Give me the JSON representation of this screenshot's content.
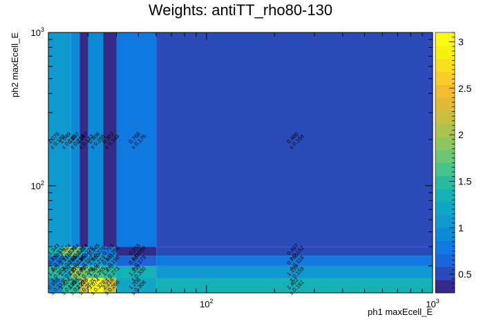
{
  "chart_data": {
    "type": "heatmap",
    "title": "Weights: antiTT_rho80-130",
    "xlabel": "ph1 maxEcell_E",
    "ylabel": "ph2 maxEcell_E",
    "xscale": "log",
    "yscale": "log",
    "xlim": [
      20,
      1000
    ],
    "ylim": [
      20,
      1000
    ],
    "x_ticks": [
      {
        "value": 100,
        "base": "10",
        "exp": "2"
      },
      {
        "value": 1000,
        "base": "10",
        "exp": "3"
      }
    ],
    "y_ticks": [
      {
        "value": 100,
        "base": "10",
        "exp": "2"
      },
      {
        "value": 1000,
        "base": "10",
        "exp": "3"
      }
    ],
    "x_edges": [
      20,
      23.1,
      25.2,
      27.5,
      30,
      35,
      40,
      60,
      1000
    ],
    "y_edges": [
      20,
      25,
      30,
      35,
      40,
      1000
    ],
    "z_min": 0.3,
    "z_max": 3.1,
    "colorbar_ticks": [
      0.5,
      1,
      1.5,
      2,
      2.5,
      3
    ],
    "colorbar_tick_labels": [
      "0.5",
      "1",
      "1.5",
      "2",
      "2.5",
      "3"
    ],
    "cells": [
      {
        "ix": 0,
        "iy": 0,
        "value": 0.958,
        "error": 0.213
      },
      {
        "ix": 1,
        "iy": 0,
        "value": 1.424,
        "error": 0.195
      },
      {
        "ix": 2,
        "iy": 0,
        "value": 1.485,
        "error": 0.199
      },
      {
        "ix": 3,
        "iy": 0,
        "value": 2.228,
        "error": 0.262
      },
      {
        "ix": 4,
        "iy": 0,
        "value": 3.074,
        "error": 0.328
      },
      {
        "ix": 5,
        "iy": 0,
        "value": 2.216,
        "error": 0.266
      },
      {
        "ix": 6,
        "iy": 0,
        "value": 1.208,
        "error": 0.306
      },
      {
        "ix": 7,
        "iy": 0,
        "value": 1.402,
        "error": 0.181
      },
      {
        "ix": 0,
        "iy": 1,
        "value": 1.465,
        "error": 0.283
      },
      {
        "ix": 1,
        "iy": 1,
        "value": 1.152,
        "error": 0.215
      },
      {
        "ix": 2,
        "iy": 1,
        "value": 1.87,
        "error": 0.248
      },
      {
        "ix": 3,
        "iy": 1,
        "value": 1.73,
        "error": 0.246
      },
      {
        "ix": 4,
        "iy": 1,
        "value": 1.566,
        "error": 0.265
      },
      {
        "ix": 5,
        "iy": 1,
        "value": 1.47,
        "error": 0.273
      },
      {
        "ix": 6,
        "iy": 1,
        "value": 1.338,
        "error": 0.33
      },
      {
        "ix": 7,
        "iy": 1,
        "value": 1.139,
        "error": 0.159
      },
      {
        "ix": 0,
        "iy": 2,
        "value": 0.788,
        "error": 0.202
      },
      {
        "ix": 1,
        "iy": 2,
        "value": 1.113,
        "error": 0.203
      },
      {
        "ix": 2,
        "iy": 2,
        "value": 0.969,
        "error": 0.198
      },
      {
        "ix": 3,
        "iy": 2,
        "value": 0.958,
        "error": 0.192
      },
      {
        "ix": 4,
        "iy": 2,
        "value": 1.08,
        "error": 0.213
      },
      {
        "ix": 5,
        "iy": 2,
        "value": 0.861,
        "error": 0.19
      },
      {
        "ix": 6,
        "iy": 2,
        "value": 0.587,
        "error": 0.173
      },
      {
        "ix": 7,
        "iy": 2,
        "value": 0.76,
        "error": 0.118
      },
      {
        "ix": 0,
        "iy": 3,
        "value": 1.343,
        "error": 0.337
      },
      {
        "ix": 1,
        "iy": 3,
        "value": 1.924,
        "error": 0.33
      },
      {
        "ix": 2,
        "iy": 3,
        "value": 1.754,
        "error": 0.326
      },
      {
        "ix": 3,
        "iy": 3,
        "value": 1.114,
        "error": 0.276
      },
      {
        "ix": 4,
        "iy": 3,
        "value": 0.945,
        "error": 0.276
      },
      {
        "ix": 5,
        "iy": 3,
        "value": 0.791,
        "error": 0.256
      },
      {
        "ix": 6,
        "iy": 3,
        "value": 0.255,
        "error": 0.059
      },
      {
        "ix": 7,
        "iy": 3,
        "value": 0.497,
        "error": 0.152
      },
      {
        "ix": 0,
        "iy": 4,
        "value": 1.078,
        "error": 0.189
      },
      {
        "ix": 1,
        "iy": 4,
        "value": 1.049,
        "error": 0.185
      },
      {
        "ix": 2,
        "iy": 4,
        "value": 0.897,
        "error": 0.226
      },
      {
        "ix": 3,
        "iy": 4,
        "value": 0.197,
        "error": 0.143
      },
      {
        "ix": 4,
        "iy": 4,
        "value": 0.908,
        "error": 0.255
      },
      {
        "ix": 5,
        "iy": 4,
        "value": 0.302,
        "error": 0.349
      },
      {
        "ix": 6,
        "iy": 4,
        "value": 0.768,
        "error": 0.176
      },
      {
        "ix": 7,
        "iy": 4,
        "value": 0.48,
        "error": 0.104
      }
    ],
    "palette": [
      "#352a87",
      "#2a4bb8",
      "#1a66d9",
      "#0f79e0",
      "#0c8ad6",
      "#0f99cf",
      "#12a6c6",
      "#14b2b7",
      "#26bca2",
      "#48c38b",
      "#6dc674",
      "#8ec660",
      "#adc24f",
      "#c8be42",
      "#e0b938",
      "#f3bc32",
      "#fbcd2a",
      "#f9df1d",
      "#f6f10e",
      "#f9fb0e"
    ],
    "grid": false
  }
}
